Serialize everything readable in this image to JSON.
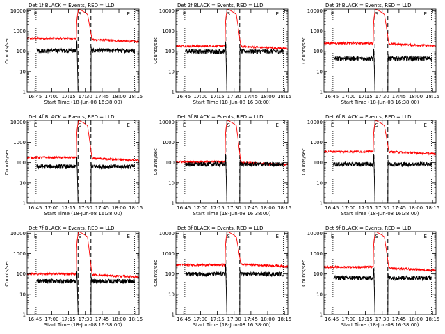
{
  "colors": {
    "events": "#000000",
    "lld": "#ff0000",
    "axis": "#000000"
  },
  "common": {
    "ylabel": "Counts/sec",
    "xlabel": "Start Time (18-Jun-08 16:38:00)",
    "xticks": [
      "16:45",
      "17:00",
      "17:15",
      "17:30",
      "17:45",
      "18:00",
      "18:15"
    ],
    "yticks": [
      "1",
      "10",
      "100",
      "1000",
      "10000"
    ],
    "marker_letters": {
      "start": "E",
      "saa": "S",
      "end": "E"
    }
  },
  "chart_data": [
    {
      "type": "line",
      "title": "Det 1f BLACK = Events, RED = LLD",
      "xlabel": "Start Time (18-Jun-08 16:38:00)",
      "ylabel": "Counts/sec",
      "x_unit": "minutes after 16:38:00",
      "xlim": [
        0,
        100
      ],
      "ylim": [
        1,
        12000
      ],
      "yscale": "log",
      "series": [
        {
          "name": "Events",
          "level": 110,
          "gap": [
            47,
            55
          ]
        },
        {
          "name": "LLD",
          "level": 430,
          "end": 370,
          "peak": 12000
        }
      ],
      "dotted_x": [
        8,
        96
      ],
      "dashed_x": [
        45.5,
        57
      ]
    },
    {
      "type": "line",
      "title": "Det 2f BLACK = Events, RED = LLD",
      "xlabel": "Start Time (18-Jun-08 16:38:00)",
      "ylabel": "Counts/sec",
      "x_unit": "minutes after 16:38:00",
      "xlim": [
        0,
        100
      ],
      "ylim": [
        1,
        12000
      ],
      "yscale": "log",
      "series": [
        {
          "name": "Events",
          "level": 100,
          "gap": [
            47,
            55
          ]
        },
        {
          "name": "LLD",
          "level": 180,
          "end": 170,
          "peak": 12000
        }
      ],
      "dotted_x": [
        8,
        96
      ],
      "dashed_x": [
        45.5,
        57
      ]
    },
    {
      "type": "line",
      "title": "Det 3f BLACK = Events, RED = LLD",
      "xlabel": "Start Time (18-Jun-08 16:38:00)",
      "ylabel": "Counts/sec",
      "x_unit": "minutes after 16:38:00",
      "xlim": [
        0,
        100
      ],
      "ylim": [
        1,
        12000
      ],
      "yscale": "log",
      "series": [
        {
          "name": "Events",
          "level": 45,
          "gap": [
            47,
            55
          ]
        },
        {
          "name": "LLD",
          "level": 250,
          "end": 230,
          "peak": 12000
        }
      ],
      "dotted_x": [
        8,
        96
      ],
      "dashed_x": [
        45.5,
        57
      ]
    },
    {
      "type": "line",
      "title": "Det 4f BLACK = Events, RED = LLD",
      "xlabel": "Start Time (18-Jun-08 16:38:00)",
      "ylabel": "Counts/sec",
      "x_unit": "minutes after 16:38:00",
      "xlim": [
        0,
        100
      ],
      "ylim": [
        1,
        12000
      ],
      "yscale": "log",
      "series": [
        {
          "name": "Events",
          "level": 65,
          "gap": [
            47,
            55
          ]
        },
        {
          "name": "LLD",
          "level": 180,
          "end": 160,
          "peak": 12000
        }
      ],
      "dotted_x": [
        8,
        96
      ],
      "dashed_x": [
        45.5,
        57
      ]
    },
    {
      "type": "line",
      "title": "Det 5f BLACK = Events, RED = LLD",
      "xlabel": "Start Time (18-Jun-08 16:38:00)",
      "ylabel": "Counts/sec",
      "x_unit": "minutes after 16:38:00",
      "xlim": [
        0,
        100
      ],
      "ylim": [
        1,
        12000
      ],
      "yscale": "log",
      "series": [
        {
          "name": "Events",
          "level": 85,
          "gap": [
            47,
            55
          ]
        },
        {
          "name": "LLD",
          "level": 110,
          "end": 100,
          "peak": 12000
        }
      ],
      "dotted_x": [
        8,
        96
      ],
      "dashed_x": [
        45.5,
        57
      ]
    },
    {
      "type": "line",
      "title": "Det 6f BLACK = Events, RED = LLD",
      "xlabel": "Start Time (18-Jun-08 16:38:00)",
      "ylabel": "Counts/sec",
      "x_unit": "minutes after 16:38:00",
      "xlim": [
        0,
        100
      ],
      "ylim": [
        1,
        12000
      ],
      "yscale": "log",
      "series": [
        {
          "name": "Events",
          "level": 85,
          "gap": [
            47,
            55
          ]
        },
        {
          "name": "LLD",
          "level": 350,
          "end": 340,
          "peak": 12000
        }
      ],
      "dotted_x": [
        8,
        96
      ],
      "dashed_x": [
        45.5,
        57
      ]
    },
    {
      "type": "line",
      "title": "Det 7f BLACK = Events, RED = LLD",
      "xlabel": "Start Time (18-Jun-08 16:38:00)",
      "ylabel": "Counts/sec",
      "x_unit": "minutes after 16:38:00",
      "xlim": [
        0,
        100
      ],
      "ylim": [
        1,
        12000
      ],
      "yscale": "log",
      "series": [
        {
          "name": "Events",
          "level": 45,
          "gap": [
            47,
            55
          ]
        },
        {
          "name": "LLD",
          "level": 100,
          "end": 90,
          "peak": 12000
        }
      ],
      "dotted_x": [
        8,
        96
      ],
      "dashed_x": [
        45.5,
        57
      ]
    },
    {
      "type": "line",
      "title": "Det 8f BLACK = Events, RED = LLD",
      "xlabel": "Start Time (18-Jun-08 16:38:00)",
      "ylabel": "Counts/sec",
      "x_unit": "minutes after 16:38:00",
      "xlim": [
        0,
        100
      ],
      "ylim": [
        1,
        12000
      ],
      "yscale": "log",
      "series": [
        {
          "name": "Events",
          "level": 100,
          "gap": [
            47,
            55
          ]
        },
        {
          "name": "LLD",
          "level": 280,
          "end": 300,
          "peak": 12000
        }
      ],
      "dotted_x": [
        8,
        96
      ],
      "dashed_x": [
        45.5,
        57
      ]
    },
    {
      "type": "line",
      "title": "Det 9f BLACK = Events, RED = LLD",
      "xlabel": "Start Time (18-Jun-08 16:38:00)",
      "ylabel": "Counts/sec",
      "x_unit": "minutes after 16:38:00",
      "xlim": [
        0,
        100
      ],
      "ylim": [
        1,
        12000
      ],
      "yscale": "log",
      "series": [
        {
          "name": "Events",
          "level": 65,
          "gap": [
            47,
            55
          ]
        },
        {
          "name": "LLD",
          "level": 220,
          "end": 190,
          "peak": 12000
        }
      ],
      "dotted_x": [
        8,
        96
      ],
      "dashed_x": [
        45.5,
        57
      ]
    }
  ]
}
